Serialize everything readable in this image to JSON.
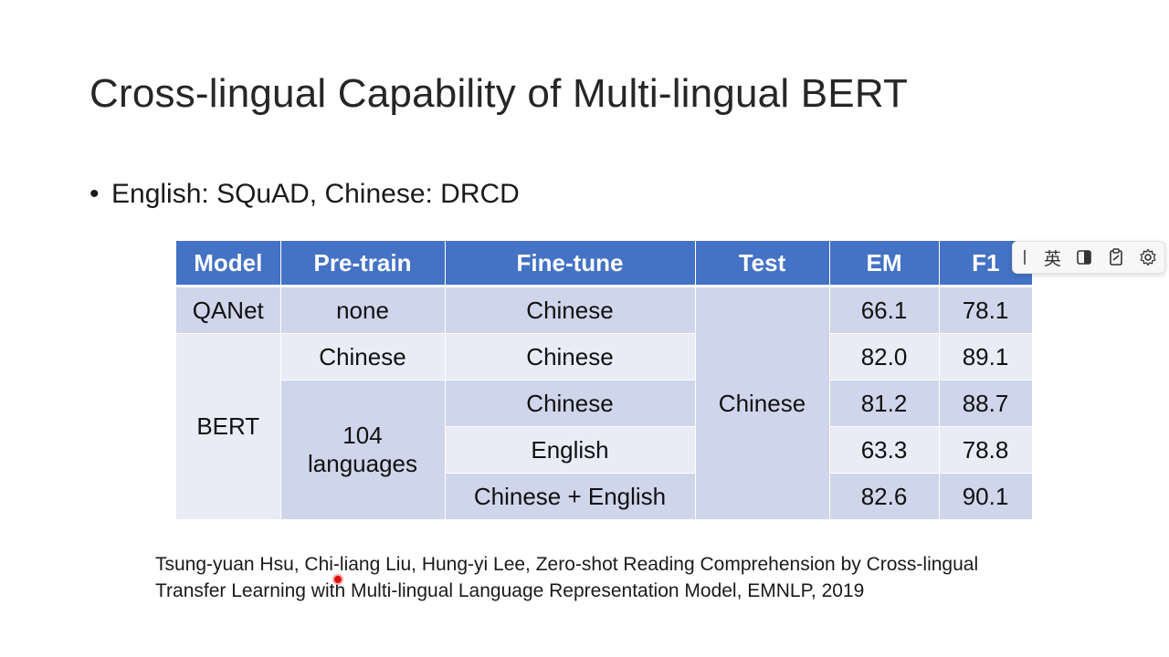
{
  "slide": {
    "title": "Cross-lingual Capability of Multi-lingual BERT",
    "bullet": "English: SQuAD, Chinese: DRCD",
    "bullet_marker": "•",
    "table": {
      "headers": [
        "Model",
        "Pre-train",
        "Fine-tune",
        "Test",
        "EM",
        "F1"
      ],
      "qanet": {
        "model": "QANet",
        "pretrain": "none",
        "finetune": "Chinese",
        "em": "66.1",
        "f1": "78.1"
      },
      "bert_model": "BERT",
      "test": "Chinese",
      "bert_chinese": {
        "pretrain": "Chinese",
        "finetune": "Chinese",
        "em": "82.0",
        "f1": "89.1"
      },
      "bert_104": {
        "pretrain_line1": "104",
        "pretrain_line2": "languages",
        "rows": [
          {
            "finetune": "Chinese",
            "em": "81.2",
            "f1": "88.7"
          },
          {
            "finetune": "English",
            "em": "63.3",
            "f1": "78.8"
          },
          {
            "finetune": "Chinese + English",
            "em": "82.6",
            "f1": "90.1"
          }
        ]
      }
    },
    "citation_line1": "Tsung-yuan Hsu, Chi-liang Liu, Hung-yi Lee, Zero-shot Reading Comprehension by Cross-lingual",
    "citation_line2": "Transfer Learning with Multi-lingual Language Representation Model, EMNLP, 2019"
  },
  "ime_toolbar": {
    "language_label": "英",
    "icons": [
      "grip-icon",
      "half-square-icon",
      "clipboard-icon",
      "gear-icon"
    ]
  },
  "colors": {
    "header_bg": "#4472c4",
    "row_dark": "#cfd5ea",
    "row_light": "#e9ebf5",
    "pointer": "#e01010"
  }
}
